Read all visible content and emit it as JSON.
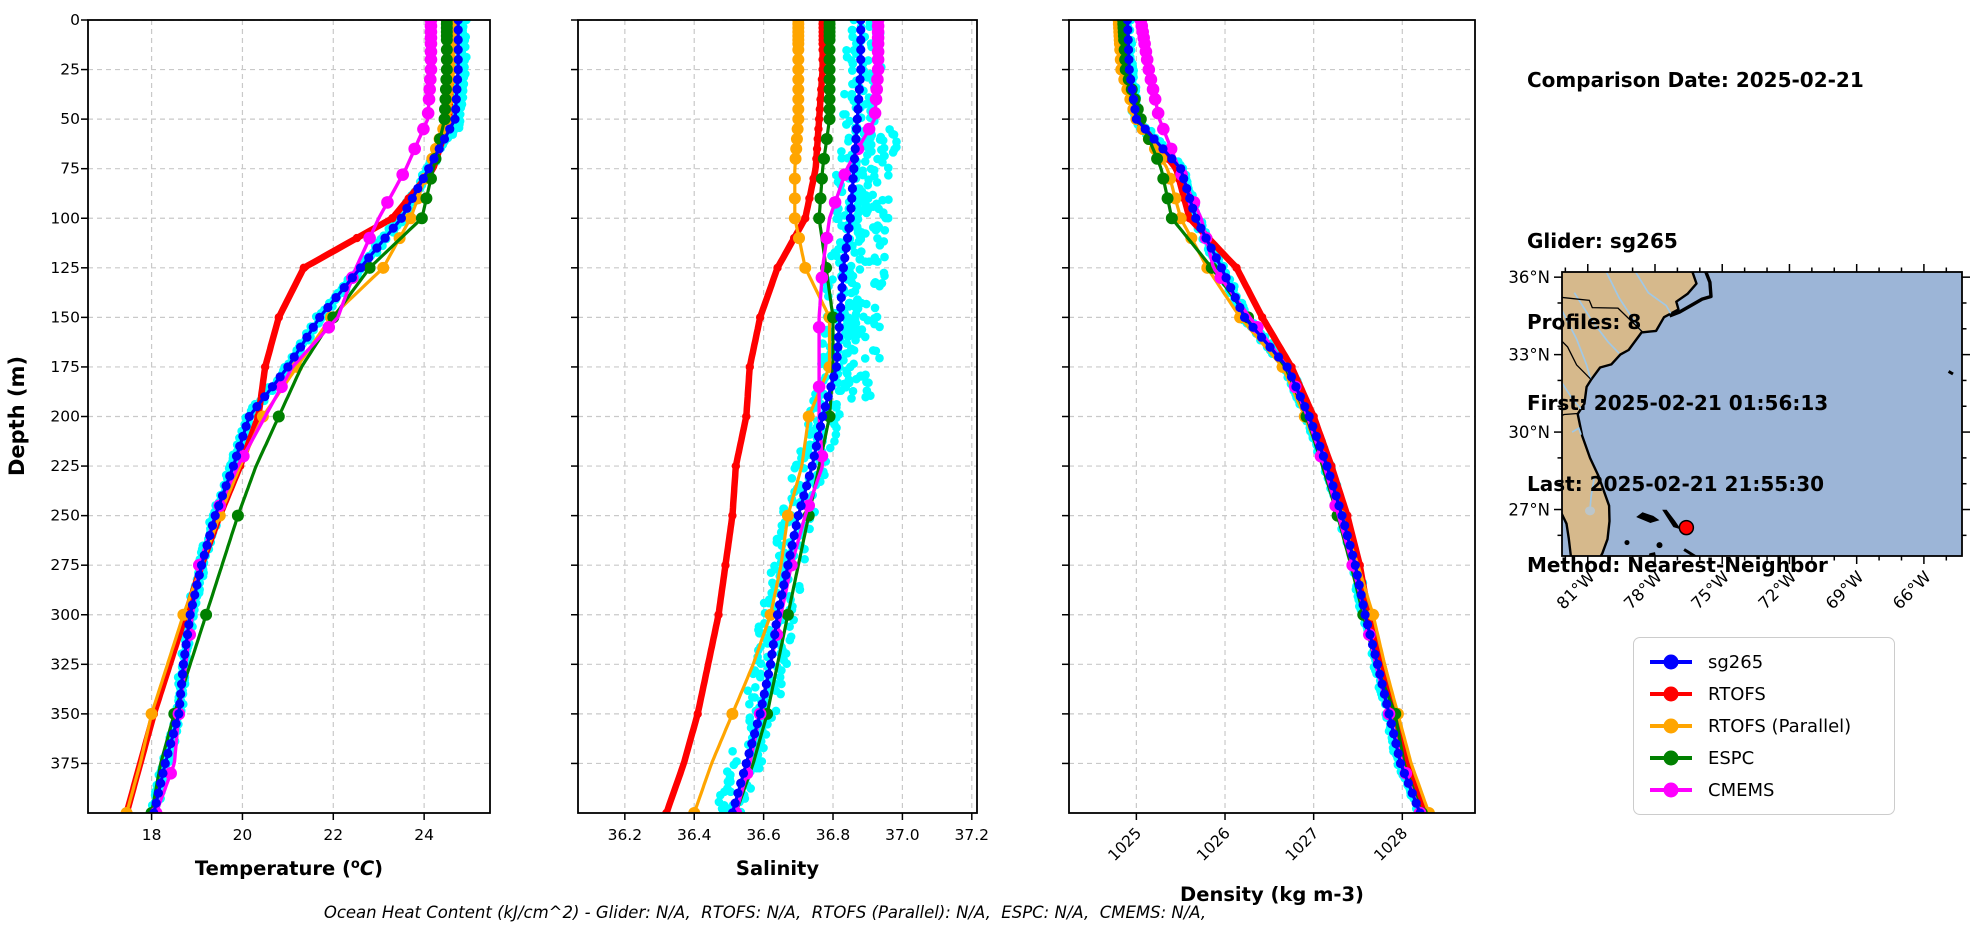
{
  "header": {
    "comparison_date": "Comparison Date: 2025-02-21",
    "glider": "Glider: sg265",
    "profiles": "Profiles: 8",
    "first": "First: 2025-02-21 01:56:13",
    "last": "Last: 2025-02-21 21:55:30",
    "method": "Method: Nearest-Neighbor"
  },
  "footer": {
    "text": "Ocean Heat Content (kJ/cm^2) - Glider: N/A,  RTOFS: N/A,  RTOFS (Parallel): N/A,  ESPC: N/A,  CMEMS: N/A,"
  },
  "depth_axis": {
    "label": "Depth (m)",
    "ticks": [
      0,
      25,
      50,
      75,
      100,
      125,
      150,
      175,
      200,
      225,
      250,
      275,
      300,
      325,
      350,
      375
    ],
    "range": [
      0,
      400
    ]
  },
  "legend": {
    "entries": [
      {
        "label": "sg265",
        "color": "#0000ff"
      },
      {
        "label": "RTOFS",
        "color": "#ff0000"
      },
      {
        "label": "RTOFS (Parallel)",
        "color": "#ffa500"
      },
      {
        "label": "ESPC",
        "color": "#008000"
      },
      {
        "label": "CMEMS",
        "color": "#ff00ff"
      }
    ]
  },
  "map": {
    "extent": {
      "lon_min": -82.15,
      "lon_max": -64.3,
      "lat_min": 25.2,
      "lat_max": 36.2
    },
    "lat_tick_values": [
      36,
      33,
      30,
      27
    ],
    "lat_tick_labels": [
      "36°N",
      "33°N",
      "30°N",
      "27°N"
    ],
    "lon_tick_values": [
      -81,
      -78,
      -75,
      -72,
      -69,
      -66
    ],
    "lon_tick_labels": [
      "81°W",
      "78°W",
      "75°W",
      "72°W",
      "69°W",
      "66°W"
    ],
    "glider_marker": {
      "lon": -76.6,
      "lat": 26.3,
      "color": "#ff0000"
    },
    "colors": {
      "ocean": "#9cb5d7",
      "land": "#d6b98c",
      "coast": "#000000",
      "river": "#a0c8e6",
      "lake": "#bcc6ca"
    }
  },
  "chart_data": [
    {
      "type": "line",
      "panel": "temperature",
      "xlabel": "Temperature (°C)",
      "xlim": [
        16.6,
        25.45
      ],
      "xticks": [
        18,
        20,
        22,
        24
      ],
      "xtick_labels": [
        "18",
        "20",
        "22",
        "24"
      ],
      "xtick_rotation": 0,
      "ylabel": "Depth (m)",
      "ylim": [
        0,
        400
      ],
      "grid": true,
      "legend_position": "outside-right",
      "depths": [
        0,
        25,
        50,
        75,
        100,
        125,
        150,
        175,
        200,
        225,
        250,
        275,
        300,
        325,
        350,
        375,
        400
      ],
      "series": [
        {
          "name": "RTOFS",
          "color": "#ff0000",
          "values": [
            24.6,
            24.6,
            24.55,
            24.2,
            23.3,
            21.35,
            20.8,
            20.5,
            20.35,
            19.95,
            19.5,
            19.1,
            18.75,
            18.4,
            18.05,
            17.75,
            17.45
          ]
        },
        {
          "name": "RTOFS (Parallel)",
          "color": "#ffa500",
          "values": [
            24.6,
            24.6,
            24.5,
            24.1,
            23.7,
            23.1,
            21.95,
            21.2,
            20.45,
            19.95,
            19.5,
            19.1,
            18.7,
            18.35,
            18.0,
            17.75,
            17.45
          ]
        },
        {
          "name": "ESPC",
          "color": "#008000",
          "values": [
            24.5,
            24.5,
            24.45,
            24.2,
            23.95,
            22.8,
            22.0,
            21.3,
            20.8,
            20.3,
            19.9,
            19.55,
            19.2,
            18.85,
            18.5,
            18.2,
            18.0
          ]
        },
        {
          "name": "CMEMS",
          "color": "#ff00ff",
          "values": [
            24.15,
            24.15,
            24.08,
            23.6,
            23.0,
            22.5,
            22.1,
            21.1,
            20.5,
            19.9,
            19.4,
            19.05,
            18.9,
            18.75,
            18.6,
            18.5,
            18.1
          ]
        },
        {
          "name": "sg265",
          "color": "#0000ff",
          "values": [
            24.75,
            24.75,
            24.68,
            24.1,
            23.5,
            22.6,
            21.7,
            21.0,
            20.15,
            19.8,
            19.4,
            19.1,
            18.85,
            18.7,
            18.6,
            18.3,
            18.05
          ]
        }
      ],
      "raw_scatter": {
        "name": "glider-raw",
        "color": "#00ffff",
        "based_on": "sg265",
        "jitter": 0.09,
        "top_bias": 0.12,
        "blob": 0
      }
    },
    {
      "type": "line",
      "panel": "salinity",
      "xlabel": "Salinity",
      "xlim": [
        36.065,
        37.215
      ],
      "xticks": [
        36.2,
        36.4,
        36.6,
        36.8,
        37.0,
        37.2
      ],
      "xtick_labels": [
        "36.2",
        "36.4",
        "36.6",
        "36.8",
        "37.0",
        "37.2"
      ],
      "xtick_rotation": 0,
      "ylim": [
        0,
        400
      ],
      "grid": true,
      "depths": [
        0,
        25,
        50,
        75,
        100,
        125,
        150,
        175,
        200,
        225,
        250,
        275,
        300,
        325,
        350,
        375,
        400
      ],
      "series": [
        {
          "name": "RTOFS",
          "color": "#ff0000",
          "values": [
            36.77,
            36.77,
            36.76,
            36.75,
            36.72,
            36.64,
            36.59,
            36.56,
            36.55,
            36.52,
            36.51,
            36.49,
            36.47,
            36.44,
            36.41,
            36.37,
            36.32
          ]
        },
        {
          "name": "RTOFS (Parallel)",
          "color": "#ffa500",
          "values": [
            36.7,
            36.7,
            36.7,
            36.69,
            36.69,
            36.72,
            36.79,
            36.79,
            36.73,
            36.71,
            36.67,
            36.65,
            36.62,
            36.57,
            36.51,
            36.45,
            36.4
          ]
        },
        {
          "name": "ESPC",
          "color": "#008000",
          "values": [
            36.79,
            36.79,
            36.79,
            36.77,
            36.76,
            36.78,
            36.8,
            36.8,
            36.79,
            36.76,
            36.73,
            36.7,
            36.67,
            36.64,
            36.61,
            36.57,
            36.52
          ]
        },
        {
          "name": "CMEMS",
          "color": "#ff00ff",
          "values": [
            36.93,
            36.93,
            36.92,
            36.84,
            36.79,
            36.77,
            36.76,
            36.76,
            36.76,
            36.77,
            36.72,
            36.68,
            36.65,
            36.62,
            36.59,
            36.56,
            36.52
          ]
        },
        {
          "name": "sg265",
          "color": "#0000ff",
          "values": [
            36.88,
            36.88,
            36.87,
            36.86,
            36.85,
            36.83,
            36.82,
            36.81,
            36.77,
            36.74,
            36.7,
            36.67,
            36.64,
            36.62,
            36.59,
            36.55,
            36.51
          ]
        }
      ],
      "raw_scatter": {
        "name": "glider-raw",
        "color": "#00ffff",
        "based_on": "sg265",
        "jitter": 0.05,
        "top_bias": 0.02,
        "blob": 0.11
      }
    },
    {
      "type": "line",
      "panel": "density",
      "xlabel": "Density (kg m-3)",
      "xlim": [
        1024.24,
        1028.82
      ],
      "xticks": [
        1025,
        1026,
        1027,
        1028
      ],
      "xtick_labels": [
        "1025",
        "1026",
        "1027",
        "1028"
      ],
      "xtick_rotation": 45,
      "ylim": [
        0,
        400
      ],
      "grid": true,
      "depths": [
        0,
        25,
        50,
        75,
        100,
        125,
        150,
        175,
        200,
        225,
        250,
        275,
        300,
        325,
        350,
        375,
        400
      ],
      "series": [
        {
          "name": "RTOFS",
          "color": "#ff0000",
          "values": [
            1024.85,
            1024.87,
            1025.0,
            1025.45,
            1025.6,
            1026.13,
            1026.42,
            1026.75,
            1027.0,
            1027.2,
            1027.38,
            1027.52,
            1027.62,
            1027.78,
            1027.92,
            1028.05,
            1028.25
          ]
        },
        {
          "name": "RTOFS (Parallel)",
          "color": "#ffa500",
          "values": [
            1024.8,
            1024.83,
            1025.0,
            1025.35,
            1025.5,
            1025.8,
            1026.17,
            1026.65,
            1026.9,
            1027.12,
            1027.3,
            1027.5,
            1027.67,
            1027.8,
            1027.95,
            1028.1,
            1028.3
          ]
        },
        {
          "name": "ESPC",
          "color": "#008000",
          "values": [
            1024.85,
            1024.88,
            1025.05,
            1025.28,
            1025.4,
            1025.85,
            1026.26,
            1026.68,
            1026.92,
            1027.1,
            1027.27,
            1027.42,
            1027.56,
            1027.7,
            1027.92,
            1028.02,
            1028.22
          ]
        },
        {
          "name": "CMEMS",
          "color": "#ff00ff",
          "values": [
            1025.05,
            1025.14,
            1025.26,
            1025.48,
            1025.73,
            1025.87,
            1026.28,
            1026.7,
            1026.93,
            1027.12,
            1027.28,
            1027.44,
            1027.58,
            1027.7,
            1027.85,
            1028.0,
            1028.2
          ]
        },
        {
          "name": "sg265",
          "color": "#0000ff",
          "values": [
            1024.9,
            1024.92,
            1025.0,
            1025.5,
            1025.67,
            1025.96,
            1026.22,
            1026.7,
            1026.95,
            1027.15,
            1027.32,
            1027.47,
            1027.58,
            1027.72,
            1027.85,
            1027.98,
            1028.2
          ]
        }
      ],
      "raw_scatter": {
        "name": "glider-raw",
        "color": "#00ffff",
        "based_on": "sg265",
        "jitter": 0.05,
        "top_bias": 0.0,
        "blob": 0
      }
    }
  ]
}
